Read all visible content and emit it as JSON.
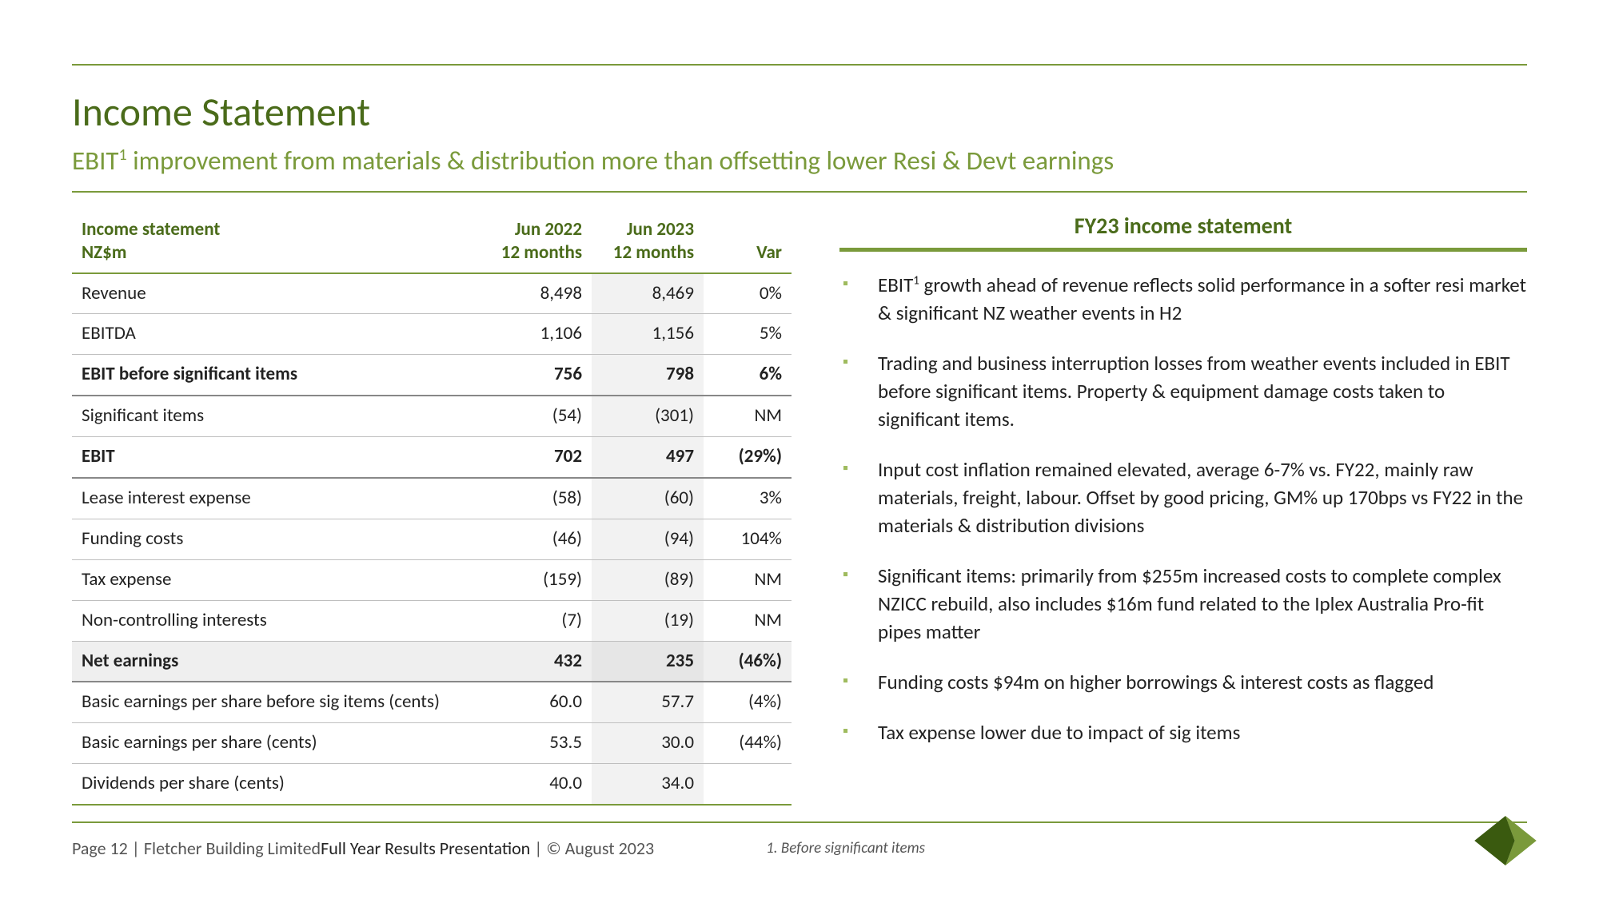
{
  "colors": {
    "accent_green": "#7a9a3b",
    "dark_green": "#4a6b1a",
    "bullet_green": "#9fbb5e",
    "text": "#222222",
    "muted": "#555555",
    "row_border": "#bfbfbf",
    "col_shade": "#f2f2f2",
    "row_shade": "#efefef"
  },
  "header": {
    "title": "Income Statement",
    "subtitle_pre": "EBIT",
    "subtitle_sup": "1",
    "subtitle_post": " improvement from materials & distribution more than offsetting lower Resi & Devt earnings"
  },
  "table": {
    "header_label_line1": "Income statement",
    "header_label_line2": "NZ$m",
    "col1_line1": "Jun 2022",
    "col1_line2": "12 months",
    "col2_line1": "Jun 2023",
    "col2_line2": "12 months",
    "col3": "Var",
    "rows": [
      {
        "label": "Revenue",
        "c1": "8,498",
        "c2": "8,469",
        "var": "0%",
        "bold": false
      },
      {
        "label": "EBITDA",
        "c1": "1,106",
        "c2": "1,156",
        "var": "5%",
        "bold": false
      },
      {
        "label": "EBIT before significant items",
        "c1": "756",
        "c2": "798",
        "var": "6%",
        "bold": true
      },
      {
        "label": "Significant items",
        "c1": "(54)",
        "c2": "(301)",
        "var": "NM",
        "bold": false
      },
      {
        "label": "EBIT",
        "c1": "702",
        "c2": "497",
        "var": "(29%)",
        "bold": true
      },
      {
        "label": "Lease interest expense",
        "c1": "(58)",
        "c2": "(60)",
        "var": "3%",
        "bold": false
      },
      {
        "label": "Funding costs",
        "c1": "(46)",
        "c2": "(94)",
        "var": "104%",
        "bold": false
      },
      {
        "label": "Tax expense",
        "c1": "(159)",
        "c2": "(89)",
        "var": "NM",
        "bold": false
      },
      {
        "label": "Non-controlling interests",
        "c1": "(7)",
        "c2": "(19)",
        "var": "NM",
        "bold": false
      },
      {
        "label": "Net earnings",
        "c1": "432",
        "c2": "235",
        "var": "(46%)",
        "bold": true,
        "shaded": true
      },
      {
        "label": "Basic earnings per share before sig items (cents)",
        "c1": "60.0",
        "c2": "57.7",
        "var": "(4%)",
        "bold": false
      },
      {
        "label": "Basic earnings per share (cents)",
        "c1": "53.5",
        "c2": "30.0",
        "var": "(44%)",
        "bold": false
      },
      {
        "label": "Dividends per share (cents)",
        "c1": "40.0",
        "c2": "34.0",
        "var": "",
        "bold": false,
        "last": true
      }
    ]
  },
  "sidebar": {
    "title": "FY23 income statement",
    "bullets": [
      {
        "pre": "EBIT",
        "sup": "1",
        "post": " growth ahead of revenue reflects solid performance in a softer resi market & significant NZ weather events in H2"
      },
      {
        "text": "Trading and business interruption losses from weather events included in EBIT before significant items. Property & equipment damage costs taken to significant items."
      },
      {
        "text": "Input cost inflation remained elevated, average 6-7% vs. FY22, mainly raw materials, freight, labour.  Offset by good pricing, GM% up 170bps vs FY22 in the materials & distribution divisions"
      },
      {
        "text": "Significant items: primarily from $255m increased costs to complete complex NZICC rebuild, also includes $16m fund related to the Iplex Australia Pro-fit pipes matter"
      },
      {
        "text": "Funding costs $94m on higher borrowings & interest costs as flagged"
      },
      {
        "text": "Tax expense lower due to impact of sig items"
      }
    ]
  },
  "footer": {
    "page": "Page 12",
    "company": "Fletcher Building Limited",
    "presentation": " Full Year Results Presentation",
    "date": "© August 2023",
    "footnote": "1. Before significant items"
  }
}
